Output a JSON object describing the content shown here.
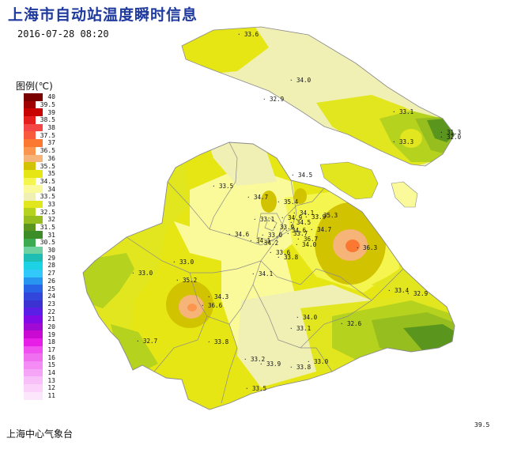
{
  "header": {
    "title": "上海市自动站温度瞬时信息",
    "timestamp": "2016-07-28 08:20"
  },
  "legend": {
    "title": "图例(℃)",
    "items": [
      {
        "label": "40",
        "color": "#7a0000"
      },
      {
        "label": "39.5",
        "color": "#a00000"
      },
      {
        "label": "39",
        "color": "#c80000"
      },
      {
        "label": "38.5",
        "color": "#e61e1e"
      },
      {
        "label": "38",
        "color": "#f54646"
      },
      {
        "label": "37.5",
        "color": "#fa5a3c"
      },
      {
        "label": "37",
        "color": "#fa7832"
      },
      {
        "label": "36.5",
        "color": "#fa9650"
      },
      {
        "label": "36",
        "color": "#f7b478"
      },
      {
        "label": "35.5",
        "color": "#d2c300"
      },
      {
        "label": "35",
        "color": "#e6e614"
      },
      {
        "label": "34.5",
        "color": "#f5f550"
      },
      {
        "label": "34",
        "color": "#fafa9b"
      },
      {
        "label": "33.5",
        "color": "#f0f0b4"
      },
      {
        "label": "33",
        "color": "#e1e61e"
      },
      {
        "label": "32.5",
        "color": "#b4d21e"
      },
      {
        "label": "32",
        "color": "#96be1e"
      },
      {
        "label": "31.5",
        "color": "#5a961e"
      },
      {
        "label": "31",
        "color": "#3c8c28"
      },
      {
        "label": "30.5",
        "color": "#3caa50"
      },
      {
        "label": "30",
        "color": "#6ed2a0"
      },
      {
        "label": "29",
        "color": "#1ebeb4"
      },
      {
        "label": "28",
        "color": "#1ed2e6"
      },
      {
        "label": "27",
        "color": "#32c8fa"
      },
      {
        "label": "26",
        "color": "#2896f0"
      },
      {
        "label": "25",
        "color": "#2864e6"
      },
      {
        "label": "24",
        "color": "#3246dc"
      },
      {
        "label": "23",
        "color": "#3c32d2"
      },
      {
        "label": "22",
        "color": "#5a1ee6"
      },
      {
        "label": "21",
        "color": "#820ae6"
      },
      {
        "label": "20",
        "color": "#a00ad2"
      },
      {
        "label": "19",
        "color": "#c80ad2"
      },
      {
        "label": "18",
        "color": "#e61ee6"
      },
      {
        "label": "17",
        "color": "#f050f0"
      },
      {
        "label": "16",
        "color": "#f06ef0"
      },
      {
        "label": "15",
        "color": "#f58cf5"
      },
      {
        "label": "14",
        "color": "#f5a5f5"
      },
      {
        "label": "13",
        "color": "#f8c0f8"
      },
      {
        "label": "12",
        "color": "#fad2fa"
      },
      {
        "label": "11",
        "color": "#fce6fc"
      }
    ]
  },
  "stations": [
    {
      "label": "33.6"
    },
    {
      "label": "34.0"
    },
    {
      "label": "32.9"
    },
    {
      "label": "33.1"
    },
    {
      "label": "31.3"
    },
    {
      "label": "32.0"
    },
    {
      "label": "33.3"
    },
    {
      "label": "34.5"
    },
    {
      "label": "33.5"
    },
    {
      "label": "34.7"
    },
    {
      "label": "35.4"
    },
    {
      "label": "34.1"
    },
    {
      "label": "35.3"
    },
    {
      "label": "33.1"
    },
    {
      "label": "34.9"
    },
    {
      "label": "33.9"
    },
    {
      "label": "33.9"
    },
    {
      "label": "34.6"
    },
    {
      "label": "34.7"
    },
    {
      "label": "34.6"
    },
    {
      "label": "34.1"
    },
    {
      "label": "33.0"
    },
    {
      "label": "34.2"
    },
    {
      "label": "36.7"
    },
    {
      "label": "34.0"
    },
    {
      "label": "36.3"
    },
    {
      "label": "33.6"
    },
    {
      "label": "33.8"
    },
    {
      "label": "33.0"
    },
    {
      "label": "33.0"
    },
    {
      "label": "34.1"
    },
    {
      "label": "35.2"
    },
    {
      "label": "34.3"
    },
    {
      "label": "36.6"
    },
    {
      "label": "33.4"
    },
    {
      "label": "32.9"
    },
    {
      "label": "34.0"
    },
    {
      "label": "33.1"
    },
    {
      "label": "32.6"
    },
    {
      "label": "32.7"
    },
    {
      "label": "33.8"
    },
    {
      "label": "33.2"
    },
    {
      "label": "33.9"
    },
    {
      "label": "33.0"
    },
    {
      "label": "33.8"
    },
    {
      "label": "33.5"
    },
    {
      "label": "34.5"
    },
    {
      "label": "33.7"
    }
  ],
  "footer": {
    "org": "上海中心气象台",
    "corner_value": "39.5"
  },
  "colors": {
    "title": "#1f3a9e",
    "district_lines": "#8a8a8a"
  }
}
